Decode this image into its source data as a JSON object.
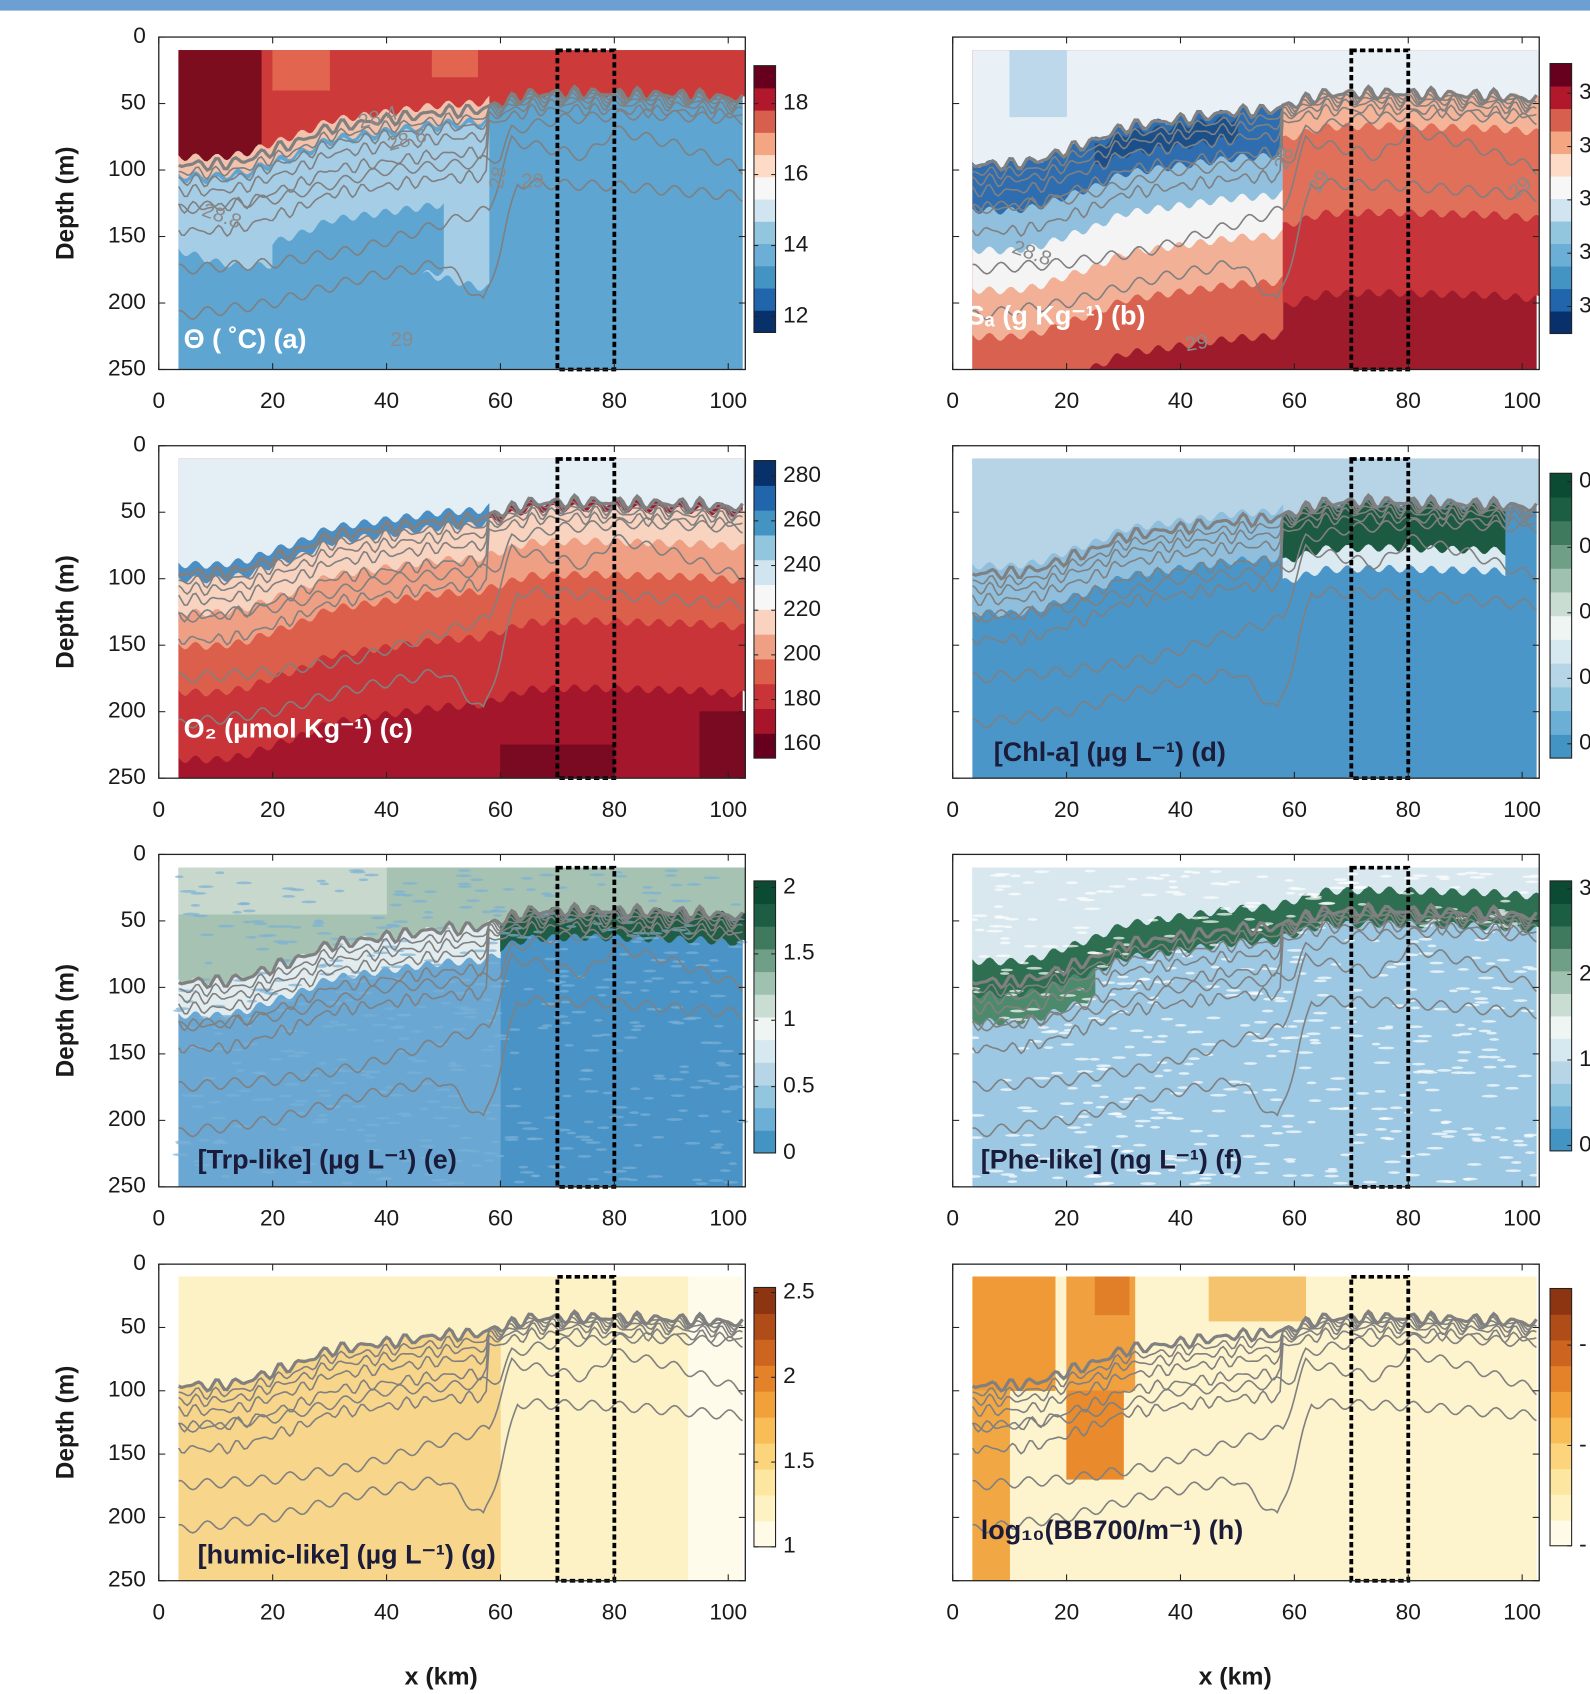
{
  "chart_data": [
    {
      "type": "heatmap",
      "label": "Θ ( ˚C)  (a)",
      "label_color": "#ffffff",
      "ylabel": "Depth (m)",
      "xlim": [
        0,
        103
      ],
      "xticks": [
        0,
        20,
        40,
        60,
        80,
        100
      ],
      "ylim": [
        0,
        250
      ],
      "y_inverted": true,
      "yticks": [
        0,
        50,
        100,
        150,
        200,
        250
      ],
      "box_x": [
        70,
        80
      ],
      "box_y": [
        10,
        250
      ],
      "colorbar": {
        "lim": [
          11.55,
          19.07
        ],
        "ticks": [
          12,
          14,
          16,
          18
        ],
        "colors": [
          "#08306b",
          "#2166ac",
          "#4393c3",
          "#6baed6",
          "#92c5de",
          "#d1e5f0",
          "#f7f7f7",
          "#fddbc7",
          "#f4a582",
          "#d6604d",
          "#b2182b",
          "#67001f"
        ]
      },
      "contour_labels": [
        "28.4",
        "28.6",
        "28.8",
        "29",
        "29",
        "28"
      ]
    },
    {
      "type": "heatmap",
      "label": "Sₐ (g Kg⁻¹)  (b)",
      "label_color": "#ffffff",
      "xlim": [
        0,
        103
      ],
      "xticks": [
        0,
        20,
        40,
        60,
        80,
        100
      ],
      "ylim": [
        0,
        250
      ],
      "y_inverted": true,
      "yticks": [
        0,
        50,
        100,
        150,
        200,
        250
      ],
      "box_x": [
        70,
        80
      ],
      "box_y": [
        10,
        250
      ],
      "colorbar": {
        "tick_labels": [
          "3",
          "3",
          "3",
          "3",
          "3"
        ],
        "colors": [
          "#08306b",
          "#2166ac",
          "#4393c3",
          "#6baed6",
          "#92c5de",
          "#d1e5f0",
          "#f7f7f7",
          "#fddbc7",
          "#f4a582",
          "#d6604d",
          "#b2182b",
          "#67001f"
        ]
      },
      "contour_labels": [
        "28.8",
        "29",
        "28",
        "29",
        "29"
      ]
    },
    {
      "type": "heatmap",
      "label": "O₂ (µmol Kg⁻¹)  (c)",
      "label_color": "#ffffff",
      "ylabel": "Depth (m)",
      "xlim": [
        0,
        103
      ],
      "xticks": [
        0,
        20,
        40,
        60,
        80,
        100
      ],
      "ylim": [
        0,
        250
      ],
      "y_inverted": true,
      "yticks": [
        0,
        50,
        100,
        150,
        200,
        250
      ],
      "box_x": [
        70,
        80
      ],
      "box_y": [
        10,
        250
      ],
      "colorbar": {
        "lim": [
          153.8,
          287
        ],
        "ticks": [
          160,
          180,
          200,
          220,
          240,
          260,
          280
        ],
        "colors": [
          "#67001f",
          "#a8152a",
          "#c93438",
          "#dc5f4b",
          "#ef9f83",
          "#f9d3c0",
          "#f7f7f7",
          "#d1e5f0",
          "#92c5de",
          "#4393c3",
          "#2166ac",
          "#08306b"
        ]
      }
    },
    {
      "type": "heatmap",
      "label": "[Chl-a] (µg L⁻¹)  (d)",
      "label_color": "#1b1b3a",
      "xlim": [
        0,
        103
      ],
      "xticks": [
        0,
        20,
        40,
        60,
        80,
        100
      ],
      "ylim": [
        0,
        250
      ],
      "y_inverted": true,
      "yticks": [
        0,
        50,
        100,
        150,
        200,
        250
      ],
      "box_x": [
        70,
        80
      ],
      "box_y": [
        10,
        250
      ],
      "colorbar": {
        "tick_labels": [
          "0",
          "0",
          "0",
          "0",
          "0"
        ],
        "colors": [
          "#4393c3",
          "#6baed6",
          "#92c5de",
          "#b6d5e6",
          "#d6e8f0",
          "#eef5f3",
          "#c9ddd2",
          "#9fc2b0",
          "#6f9f86",
          "#3f7a5f",
          "#1b5e43",
          "#0b4a33"
        ]
      }
    },
    {
      "type": "heatmap",
      "label": "[Trp-like] (µg L⁻¹)  (e)",
      "label_color": "#1b1b3a",
      "ylabel": "Depth (m)",
      "xlim": [
        0,
        103
      ],
      "xticks": [
        0,
        20,
        40,
        60,
        80,
        100
      ],
      "ylim": [
        0,
        250
      ],
      "y_inverted": true,
      "yticks": [
        0,
        50,
        100,
        150,
        200,
        250
      ],
      "box_x": [
        70,
        80
      ],
      "box_y": [
        10,
        250
      ],
      "colorbar": {
        "lim": [
          0,
          2.05
        ],
        "ticks": [
          0,
          0.5,
          1,
          1.5,
          2
        ],
        "colors": [
          "#4393c3",
          "#6baed6",
          "#92c5de",
          "#b6d5e6",
          "#d6e8f0",
          "#eef5f3",
          "#c9ddd2",
          "#9fc2b0",
          "#6f9f86",
          "#3f7a5f",
          "#1b5e43",
          "#0b4a33"
        ]
      }
    },
    {
      "type": "heatmap",
      "label": "[Phe-like] (ng L⁻¹)  (f)",
      "label_color": "#1b1b3a",
      "xlim": [
        0,
        103
      ],
      "xticks": [
        0,
        20,
        40,
        60,
        80,
        100
      ],
      "ylim": [
        0,
        250
      ],
      "y_inverted": true,
      "yticks": [
        0,
        50,
        100,
        150,
        200,
        250
      ],
      "box_x": [
        70,
        80
      ],
      "box_y": [
        10,
        250
      ],
      "colorbar": {
        "tick_labels": [
          "3",
          "2",
          "1",
          "0"
        ],
        "colors": [
          "#4393c3",
          "#6baed6",
          "#92c5de",
          "#b6d5e6",
          "#d6e8f0",
          "#eef5f3",
          "#c9ddd2",
          "#9fc2b0",
          "#6f9f86",
          "#3f7a5f",
          "#1b5e43",
          "#0b4a33"
        ]
      }
    },
    {
      "type": "heatmap",
      "label": "[humic-like] (µg L⁻¹)  (g)",
      "label_color": "#1b1b3a",
      "ylabel": "Depth (m)",
      "xlabel": "x (km)",
      "xlim": [
        0,
        103
      ],
      "xticks": [
        0,
        20,
        40,
        60,
        80,
        100
      ],
      "ylim": [
        0,
        250
      ],
      "y_inverted": true,
      "yticks": [
        0,
        50,
        100,
        150,
        200,
        250
      ],
      "box_x": [
        70,
        80
      ],
      "box_y": [
        10,
        250
      ],
      "colorbar": {
        "lim": [
          1,
          2.53
        ],
        "ticks": [
          1,
          1.5,
          2,
          2.5
        ],
        "colors": [
          "#fffbe6",
          "#fef2c2",
          "#fde6a0",
          "#fcd47c",
          "#f9bd57",
          "#f2a03a",
          "#e4822a",
          "#cd6420",
          "#b04c18",
          "#8c3510"
        ]
      }
    },
    {
      "type": "heatmap",
      "label": "log₁₀(BB700/m⁻¹)  (h)",
      "label_color": "#1b1b3a",
      "xlabel": "x (km)",
      "xlim": [
        0,
        103
      ],
      "xticks": [
        0,
        20,
        40,
        60,
        80,
        100
      ],
      "ylim": [
        0,
        250
      ],
      "y_inverted": true,
      "yticks": [
        0,
        50,
        100,
        150,
        200,
        250
      ],
      "box_x": [
        70,
        80
      ],
      "box_y": [
        10,
        250
      ],
      "colorbar": {
        "tick_labels": [
          "-",
          "-",
          "-"
        ],
        "colors": [
          "#fffbe6",
          "#fef2c2",
          "#fde6a0",
          "#fcd47c",
          "#f9bd57",
          "#f2a03a",
          "#e4822a",
          "#cd6420",
          "#b04c18",
          "#8c3510"
        ]
      }
    }
  ]
}
